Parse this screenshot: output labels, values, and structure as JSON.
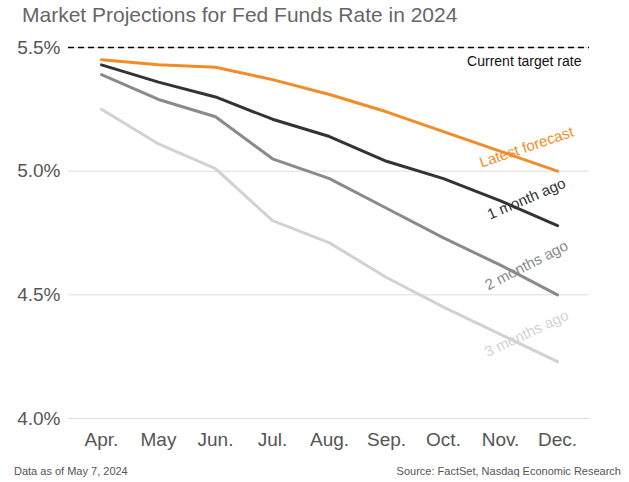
{
  "chart_data": {
    "type": "line",
    "title": "Market Projections for Fed Funds Rate in 2024",
    "footnote": "Data as of May 7, 2024",
    "source": "Source: FactSet, Nasdaq Economic Research",
    "categories": [
      "Apr.",
      "May",
      "Jun.",
      "Jul.",
      "Aug.",
      "Sep.",
      "Oct.",
      "Nov.",
      "Dec."
    ],
    "series": [
      {
        "name": "Latest forecast",
        "color": "#f28c28",
        "values": [
          5.45,
          5.43,
          5.42,
          5.37,
          5.31,
          5.24,
          5.16,
          5.08,
          5.0
        ]
      },
      {
        "name": "1 month ago",
        "color": "#333333",
        "values": [
          5.43,
          5.36,
          5.3,
          5.21,
          5.14,
          5.04,
          4.97,
          4.88,
          4.78
        ]
      },
      {
        "name": "2 months ago",
        "color": "#8a8a8a",
        "values": [
          5.39,
          5.29,
          5.22,
          5.05,
          4.97,
          4.85,
          4.73,
          4.62,
          4.5
        ]
      },
      {
        "name": "3 months ago",
        "color": "#d2d2d2",
        "values": [
          5.25,
          5.11,
          5.01,
          4.8,
          4.71,
          4.57,
          4.45,
          4.34,
          4.23
        ]
      }
    ],
    "ylim": [
      4.0,
      5.5
    ],
    "yticks": [
      {
        "value": 4.0,
        "label": "4.0%"
      },
      {
        "value": 4.5,
        "label": "4.5%"
      },
      {
        "value": 5.0,
        "label": "5.0%"
      },
      {
        "value": 5.5,
        "label": "5.5%"
      }
    ],
    "grid": true,
    "annotations": [
      {
        "text": "Current target rate",
        "y": 5.5,
        "line_style": "dashed"
      }
    ]
  }
}
